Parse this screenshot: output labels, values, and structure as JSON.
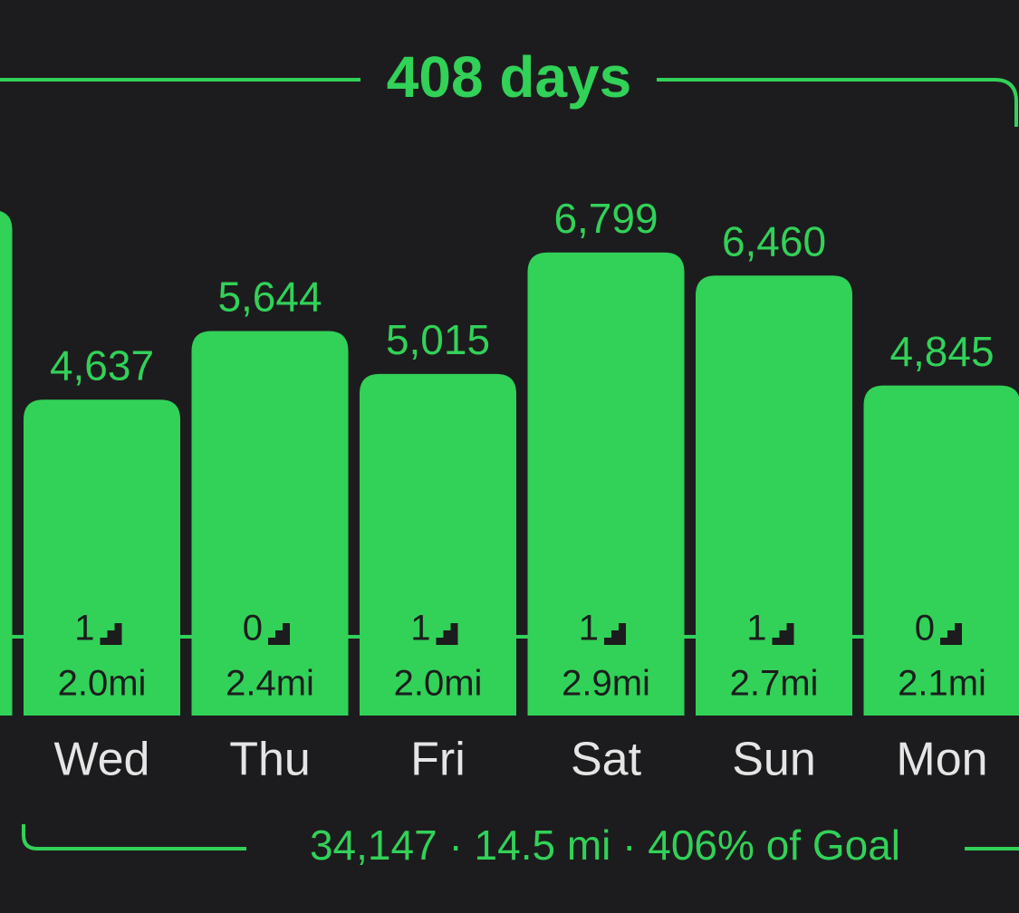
{
  "chart_data": {
    "type": "bar",
    "title": "408 days",
    "categories": [
      null,
      "Wed",
      "Thu",
      "Fri",
      "Sat",
      "Sun",
      "Mon"
    ],
    "values": [
      7420,
      4637,
      5644,
      5015,
      6799,
      6460,
      4845
    ],
    "value_labels": [
      null,
      "4,637",
      "5,644",
      "5,015",
      "6,799",
      "6,460",
      "4,845"
    ],
    "floors": [
      null,
      1,
      0,
      1,
      1,
      1,
      0
    ],
    "distances": [
      null,
      "2.0mi",
      "2.4mi",
      "2.0mi",
      "2.9mi",
      "2.7mi",
      "2.1mi"
    ],
    "summary": "34,147 · 14.5 mi · 406% of Goal",
    "color": "#32d158"
  }
}
